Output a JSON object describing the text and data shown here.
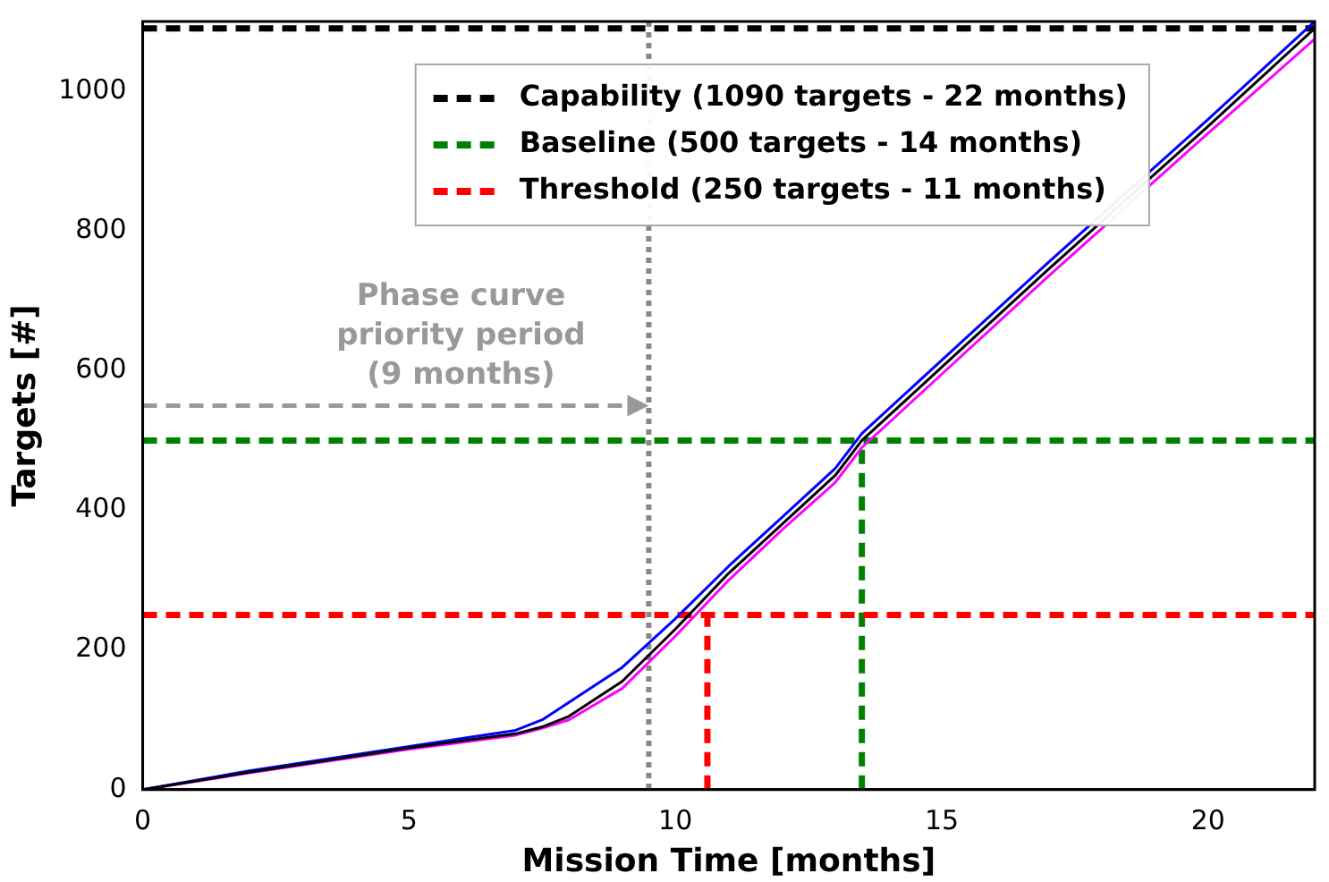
{
  "chart_data": {
    "type": "line",
    "xlabel": "Mission Time [months]",
    "ylabel": "Targets [#]",
    "xlim": [
      0,
      22
    ],
    "ylim": [
      0,
      1100
    ],
    "xticks": [
      0,
      5,
      10,
      15,
      20
    ],
    "yticks": [
      0,
      200,
      400,
      600,
      800,
      1000
    ],
    "grid": false,
    "legend": "top",
    "marker": "none",
    "series": [
      {
        "color": "#000000",
        "x": [
          0,
          2,
          5,
          7,
          7.5,
          8,
          9,
          10,
          11,
          12,
          13,
          13.5,
          15,
          17,
          20,
          22
        ],
        "values": [
          0,
          25,
          60,
          80,
          90,
          105,
          155,
          230,
          310,
          380,
          450,
          500,
          605,
          745,
          950,
          1090
        ]
      },
      {
        "color": "#0000ff",
        "x": [
          0,
          2,
          5,
          7,
          7.5,
          8,
          9,
          10,
          11,
          12,
          13,
          13.5,
          15,
          17,
          20,
          22
        ],
        "values": [
          0,
          27,
          62,
          85,
          100,
          125,
          175,
          245,
          320,
          390,
          460,
          510,
          615,
          755,
          960,
          1100
        ]
      },
      {
        "color": "#ff00ff",
        "x": [
          0,
          2,
          5,
          7,
          7.5,
          8,
          9,
          10,
          11,
          12,
          13,
          13.5,
          15,
          17,
          20,
          22
        ],
        "values": [
          0,
          24,
          58,
          78,
          88,
          100,
          145,
          220,
          300,
          372,
          440,
          490,
          595,
          735,
          940,
          1075
        ]
      },
      {
        "name": "Capability (1090 targets - 22 months)",
        "color": "#000000",
        "line_style": "dashed",
        "x": [
          0,
          22
        ],
        "values": [
          1090,
          1090
        ]
      },
      {
        "name": "Baseline (500 targets - 14 months)",
        "color": "#008000",
        "line_style": "dashed",
        "x": [
          0,
          22
        ],
        "values": [
          500,
          500
        ]
      },
      {
        "name": "Threshold (250 targets - 11 months)",
        "color": "#ff0000",
        "line_style": "dashed",
        "x": [
          0,
          22
        ],
        "values": [
          250,
          250
        ]
      },
      {
        "color": "#008000",
        "line_style": "dashed",
        "x": [
          13.5,
          13.5
        ],
        "values": [
          0,
          500
        ]
      },
      {
        "color": "#ff0000",
        "line_style": "dashed",
        "x": [
          10.6,
          10.6
        ],
        "values": [
          0,
          250
        ]
      }
    ],
    "ref_lines": [
      {
        "axis": "x",
        "value": 9.5,
        "color": "#888888",
        "line_style": "dotted"
      }
    ],
    "annotations": [
      {
        "text": "Phase curve priority period (9 months)",
        "x": 9.5,
        "y": 550
      }
    ]
  }
}
